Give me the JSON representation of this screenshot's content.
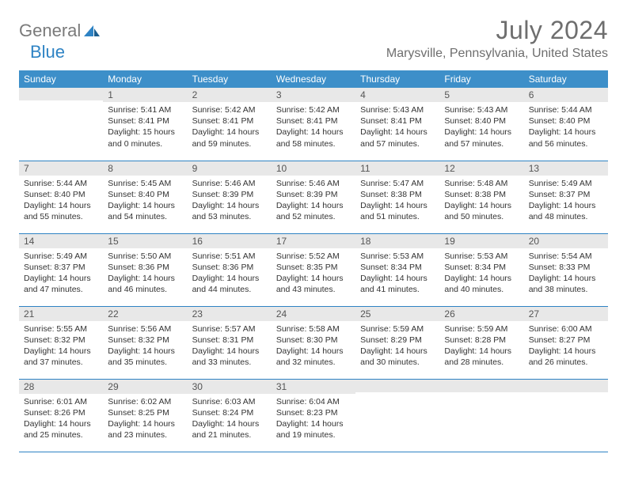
{
  "brand": {
    "part1": "General",
    "part2": "Blue"
  },
  "title": "July 2024",
  "location": "Marysville, Pennsylvania, United States",
  "colors": {
    "header_bg": "#3d8fc9",
    "header_text": "#ffffff",
    "daynum_bg": "#e8e8e8",
    "border": "#2e83c4",
    "title_color": "#6e6e6e",
    "logo_gray": "#7a7a7a",
    "logo_blue": "#2e83c4"
  },
  "dayNames": [
    "Sunday",
    "Monday",
    "Tuesday",
    "Wednesday",
    "Thursday",
    "Friday",
    "Saturday"
  ],
  "weeks": [
    [
      {
        "n": "",
        "lines": []
      },
      {
        "n": "1",
        "lines": [
          "Sunrise: 5:41 AM",
          "Sunset: 8:41 PM",
          "Daylight: 15 hours and 0 minutes."
        ]
      },
      {
        "n": "2",
        "lines": [
          "Sunrise: 5:42 AM",
          "Sunset: 8:41 PM",
          "Daylight: 14 hours and 59 minutes."
        ]
      },
      {
        "n": "3",
        "lines": [
          "Sunrise: 5:42 AM",
          "Sunset: 8:41 PM",
          "Daylight: 14 hours and 58 minutes."
        ]
      },
      {
        "n": "4",
        "lines": [
          "Sunrise: 5:43 AM",
          "Sunset: 8:41 PM",
          "Daylight: 14 hours and 57 minutes."
        ]
      },
      {
        "n": "5",
        "lines": [
          "Sunrise: 5:43 AM",
          "Sunset: 8:40 PM",
          "Daylight: 14 hours and 57 minutes."
        ]
      },
      {
        "n": "6",
        "lines": [
          "Sunrise: 5:44 AM",
          "Sunset: 8:40 PM",
          "Daylight: 14 hours and 56 minutes."
        ]
      }
    ],
    [
      {
        "n": "7",
        "lines": [
          "Sunrise: 5:44 AM",
          "Sunset: 8:40 PM",
          "Daylight: 14 hours and 55 minutes."
        ]
      },
      {
        "n": "8",
        "lines": [
          "Sunrise: 5:45 AM",
          "Sunset: 8:40 PM",
          "Daylight: 14 hours and 54 minutes."
        ]
      },
      {
        "n": "9",
        "lines": [
          "Sunrise: 5:46 AM",
          "Sunset: 8:39 PM",
          "Daylight: 14 hours and 53 minutes."
        ]
      },
      {
        "n": "10",
        "lines": [
          "Sunrise: 5:46 AM",
          "Sunset: 8:39 PM",
          "Daylight: 14 hours and 52 minutes."
        ]
      },
      {
        "n": "11",
        "lines": [
          "Sunrise: 5:47 AM",
          "Sunset: 8:38 PM",
          "Daylight: 14 hours and 51 minutes."
        ]
      },
      {
        "n": "12",
        "lines": [
          "Sunrise: 5:48 AM",
          "Sunset: 8:38 PM",
          "Daylight: 14 hours and 50 minutes."
        ]
      },
      {
        "n": "13",
        "lines": [
          "Sunrise: 5:49 AM",
          "Sunset: 8:37 PM",
          "Daylight: 14 hours and 48 minutes."
        ]
      }
    ],
    [
      {
        "n": "14",
        "lines": [
          "Sunrise: 5:49 AM",
          "Sunset: 8:37 PM",
          "Daylight: 14 hours and 47 minutes."
        ]
      },
      {
        "n": "15",
        "lines": [
          "Sunrise: 5:50 AM",
          "Sunset: 8:36 PM",
          "Daylight: 14 hours and 46 minutes."
        ]
      },
      {
        "n": "16",
        "lines": [
          "Sunrise: 5:51 AM",
          "Sunset: 8:36 PM",
          "Daylight: 14 hours and 44 minutes."
        ]
      },
      {
        "n": "17",
        "lines": [
          "Sunrise: 5:52 AM",
          "Sunset: 8:35 PM",
          "Daylight: 14 hours and 43 minutes."
        ]
      },
      {
        "n": "18",
        "lines": [
          "Sunrise: 5:53 AM",
          "Sunset: 8:34 PM",
          "Daylight: 14 hours and 41 minutes."
        ]
      },
      {
        "n": "19",
        "lines": [
          "Sunrise: 5:53 AM",
          "Sunset: 8:34 PM",
          "Daylight: 14 hours and 40 minutes."
        ]
      },
      {
        "n": "20",
        "lines": [
          "Sunrise: 5:54 AM",
          "Sunset: 8:33 PM",
          "Daylight: 14 hours and 38 minutes."
        ]
      }
    ],
    [
      {
        "n": "21",
        "lines": [
          "Sunrise: 5:55 AM",
          "Sunset: 8:32 PM",
          "Daylight: 14 hours and 37 minutes."
        ]
      },
      {
        "n": "22",
        "lines": [
          "Sunrise: 5:56 AM",
          "Sunset: 8:32 PM",
          "Daylight: 14 hours and 35 minutes."
        ]
      },
      {
        "n": "23",
        "lines": [
          "Sunrise: 5:57 AM",
          "Sunset: 8:31 PM",
          "Daylight: 14 hours and 33 minutes."
        ]
      },
      {
        "n": "24",
        "lines": [
          "Sunrise: 5:58 AM",
          "Sunset: 8:30 PM",
          "Daylight: 14 hours and 32 minutes."
        ]
      },
      {
        "n": "25",
        "lines": [
          "Sunrise: 5:59 AM",
          "Sunset: 8:29 PM",
          "Daylight: 14 hours and 30 minutes."
        ]
      },
      {
        "n": "26",
        "lines": [
          "Sunrise: 5:59 AM",
          "Sunset: 8:28 PM",
          "Daylight: 14 hours and 28 minutes."
        ]
      },
      {
        "n": "27",
        "lines": [
          "Sunrise: 6:00 AM",
          "Sunset: 8:27 PM",
          "Daylight: 14 hours and 26 minutes."
        ]
      }
    ],
    [
      {
        "n": "28",
        "lines": [
          "Sunrise: 6:01 AM",
          "Sunset: 8:26 PM",
          "Daylight: 14 hours and 25 minutes."
        ]
      },
      {
        "n": "29",
        "lines": [
          "Sunrise: 6:02 AM",
          "Sunset: 8:25 PM",
          "Daylight: 14 hours and 23 minutes."
        ]
      },
      {
        "n": "30",
        "lines": [
          "Sunrise: 6:03 AM",
          "Sunset: 8:24 PM",
          "Daylight: 14 hours and 21 minutes."
        ]
      },
      {
        "n": "31",
        "lines": [
          "Sunrise: 6:04 AM",
          "Sunset: 8:23 PM",
          "Daylight: 14 hours and 19 minutes."
        ]
      },
      {
        "n": "",
        "lines": []
      },
      {
        "n": "",
        "lines": []
      },
      {
        "n": "",
        "lines": []
      }
    ]
  ]
}
